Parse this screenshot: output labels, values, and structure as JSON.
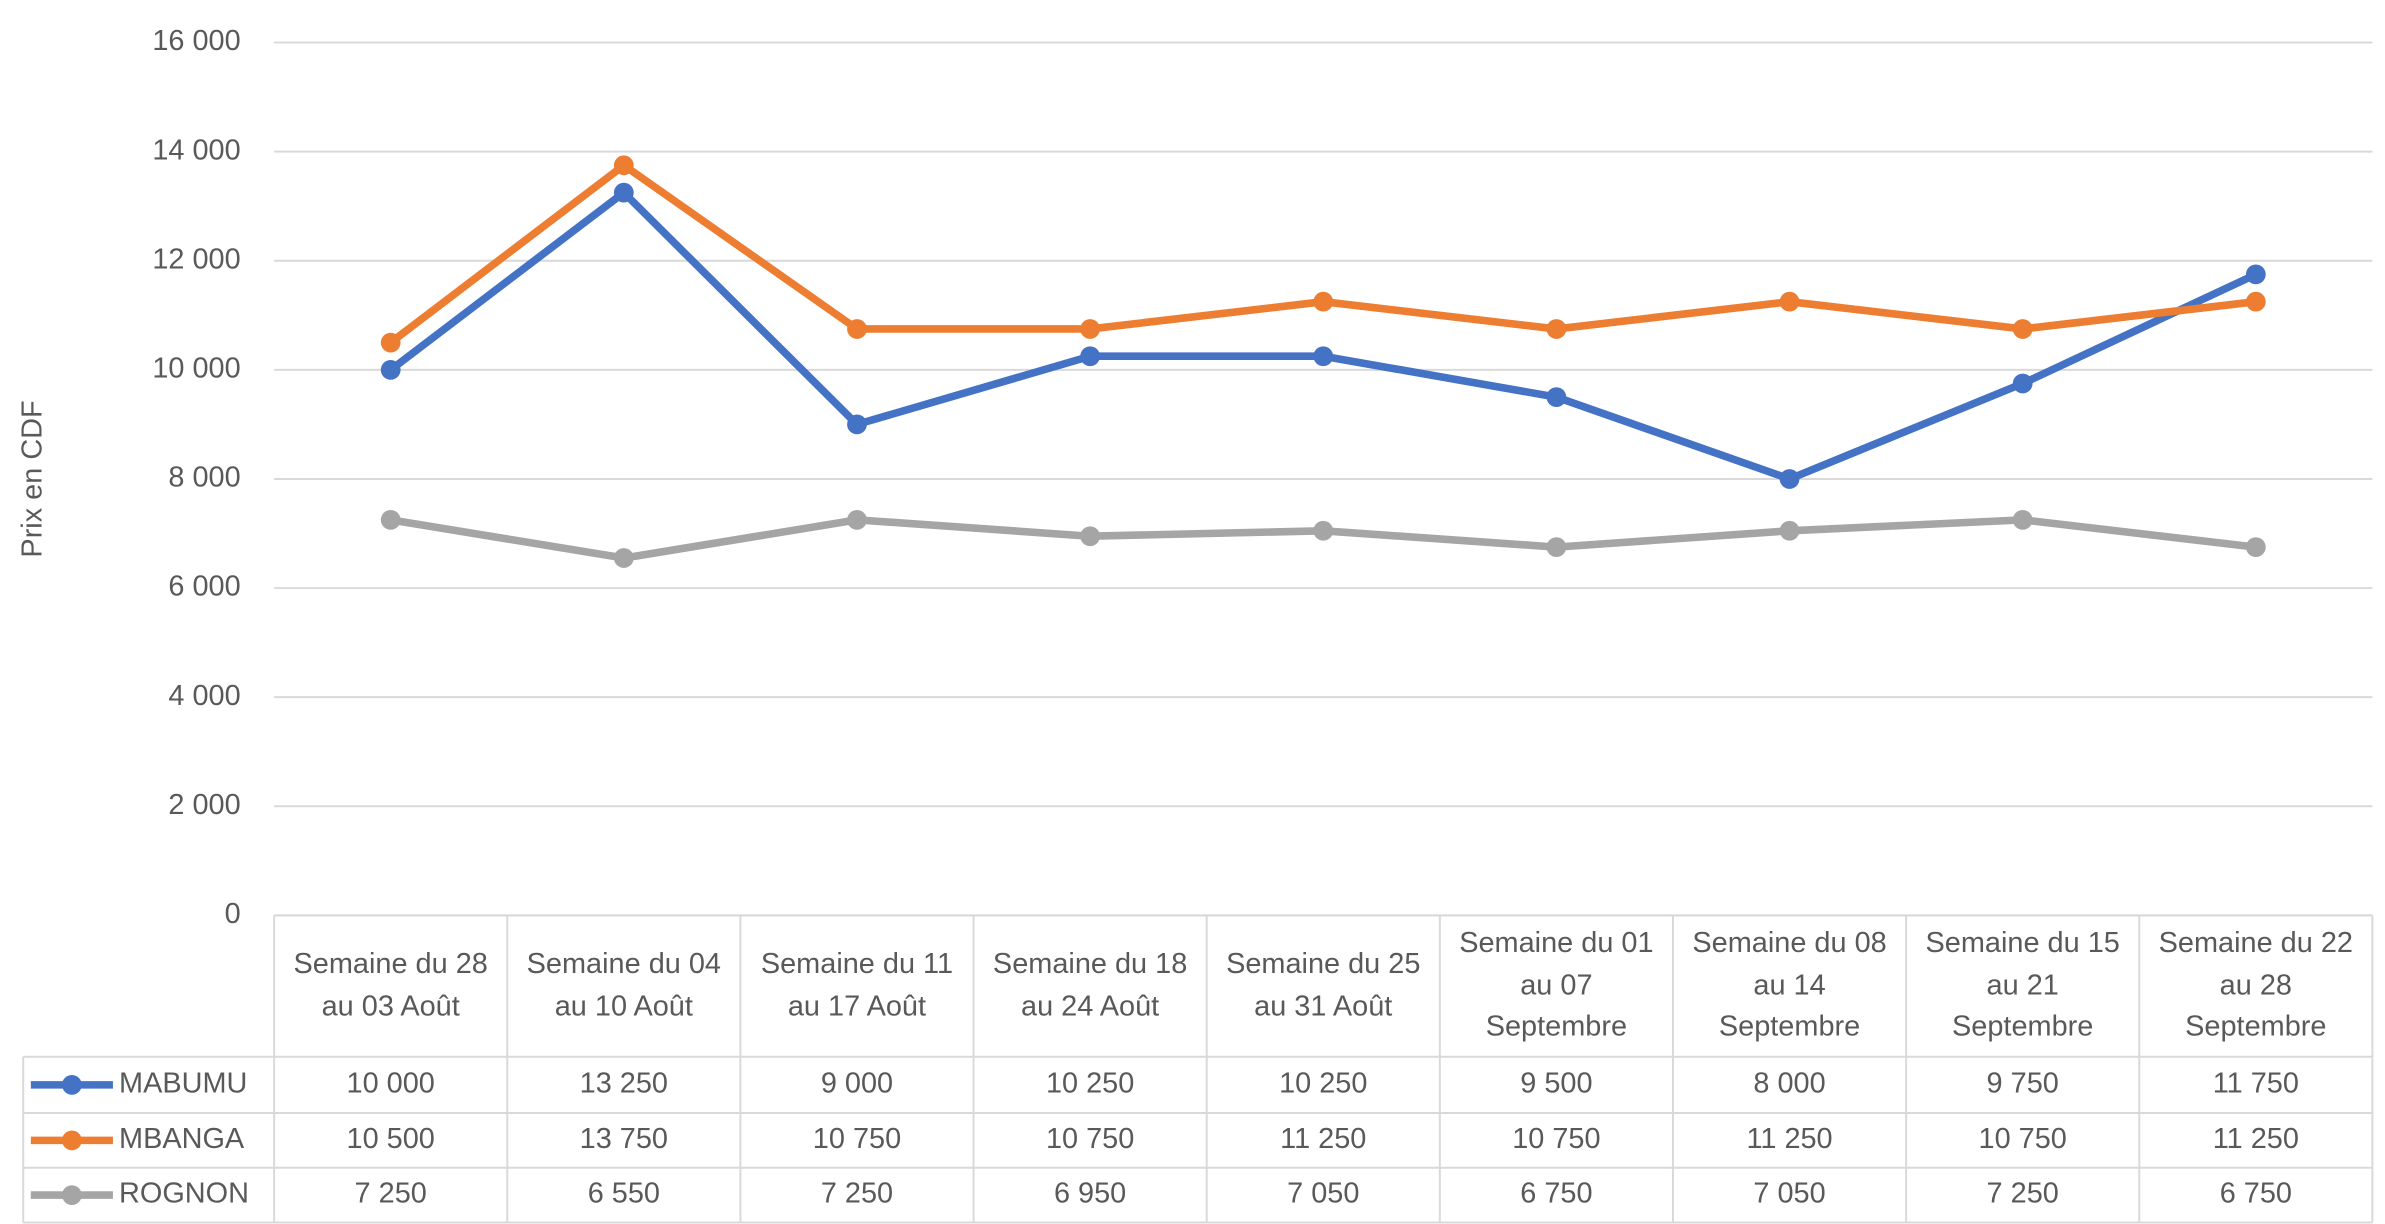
{
  "chart_data": {
    "type": "line",
    "y_label": "Prix en CDF",
    "categories": [
      "Semaine du 28 au 03 Août",
      "Semaine du 04 au 10 Août",
      "Semaine du 11 au 17 Août",
      "Semaine du 18 au 24 Août",
      "Semaine du 25 au 31 Août",
      "Semaine du 01 au 07 Septembre",
      "Semaine du 08 au 14 Septembre",
      "Semaine du 15 au 21 Septembre",
      "Semaine du 22 au 28 Septembre"
    ],
    "series": [
      {
        "name": "MABUMU",
        "color": "#4472c4",
        "values": [
          10000,
          13250,
          9000,
          10250,
          10250,
          9500,
          8000,
          9750,
          11750
        ],
        "value_labels": [
          "10 000",
          "13 250",
          "9 000",
          "10 250",
          "10 250",
          "9 500",
          "8 000",
          "9 750",
          "11 750"
        ]
      },
      {
        "name": "MBANGA",
        "color": "#ed7d31",
        "values": [
          10500,
          13750,
          10750,
          10750,
          11250,
          10750,
          11250,
          10750,
          11250
        ],
        "value_labels": [
          "10 500",
          "13 750",
          "10 750",
          "10 750",
          "11 250",
          "10 750",
          "11 250",
          "10 750",
          "11 250"
        ]
      },
      {
        "name": "ROGNON",
        "color": "#a5a5a5",
        "values": [
          7250,
          6550,
          7250,
          6950,
          7050,
          6750,
          7050,
          7250,
          6750
        ],
        "value_labels": [
          "7 250",
          "6 550",
          "7 250",
          "6 950",
          "7 050",
          "6 750",
          "7 050",
          "7 250",
          "6 750"
        ]
      }
    ],
    "ylim": [
      0,
      16000
    ],
    "yticks": [
      0,
      {
        "value": 2000,
        "label": "2 000"
      },
      {
        "value": 4000,
        "label": "4 000"
      },
      {
        "value": 6000,
        "label": "6 000"
      },
      {
        "value": 8000,
        "label": "8 000"
      },
      {
        "value": 10000,
        "label": "10 000"
      },
      {
        "value": 12000,
        "label": "12 000"
      },
      {
        "value": 14000,
        "label": "14 000"
      },
      {
        "value": 16000,
        "label": "16 000"
      }
    ],
    "grid": true
  }
}
